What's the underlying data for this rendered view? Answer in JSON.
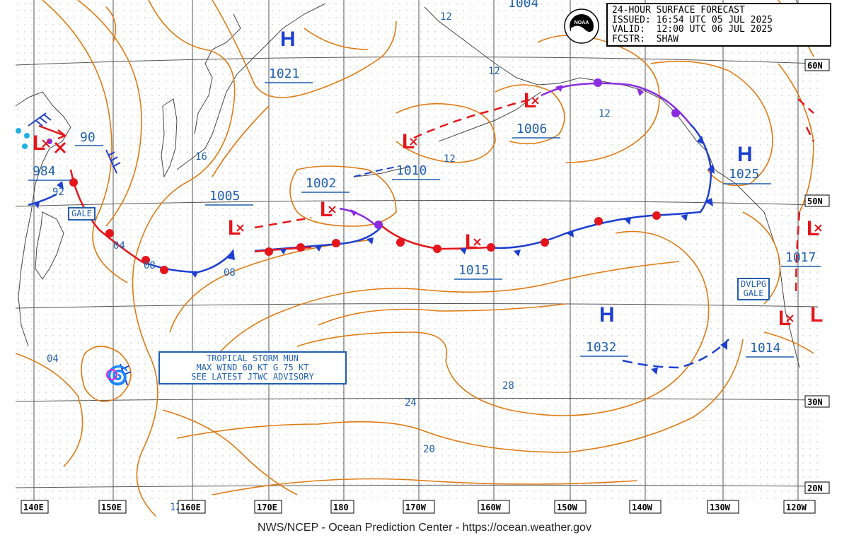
{
  "title": {
    "line1": "24-HOUR SURFACE FORECAST",
    "line2": "ISSUED: 16:54 UTC 05 JUL 2025",
    "line3": "VALID:  12:00 UTC 06 JUL 2025",
    "line4": "FCSTR:  SHAW"
  },
  "footer": "NWS/NCEP - Ocean Prediction Center - https://ocean.weather.gov",
  "logo_text": "NOAA",
  "lon_labels": [
    "140E",
    "150E",
    "160E",
    "170E",
    "180",
    "170W",
    "160W",
    "150W",
    "140W",
    "130W",
    "120W"
  ],
  "lat_labels": [
    "60N",
    "50N",
    "30N",
    "20N"
  ],
  "highs": [
    {
      "letter": "H",
      "value": "1021"
    },
    {
      "letter": "H",
      "value": "1025"
    },
    {
      "letter": "H",
      "value": "1032"
    }
  ],
  "lows": [
    {
      "letter": "L",
      "value": "984"
    },
    {
      "letter": "L",
      "value": "1005"
    },
    {
      "letter": "L",
      "value": "1002"
    },
    {
      "letter": "L",
      "value": "1010"
    },
    {
      "letter": "L",
      "value": "1006"
    },
    {
      "letter": "L",
      "value": "1015"
    },
    {
      "letter": "L",
      "value": "1017"
    },
    {
      "letter": "L",
      "value": "1014"
    },
    {
      "letter": "L",
      "value": "1004"
    }
  ],
  "low_90": "90",
  "tags": {
    "gale": "GALE",
    "dvlpg1": "DVLPG",
    "dvlpg2": "GALE"
  },
  "advisory": {
    "line1": "TROPICAL STORM MUN",
    "line2": "MAX WIND 60 KT G 75 KT",
    "line3": "SEE LATEST JTWC ADVISORY"
  },
  "isobar_labels": [
    "12",
    "12",
    "12",
    "12",
    "16",
    "92",
    "04",
    "08",
    "08",
    "04",
    "24",
    "28",
    "20",
    "12",
    "12"
  ],
  "colors": {
    "isobar": "#e07a12",
    "cold": "#1c3fd1",
    "warm": "#e4161b",
    "occluded": "#8a2be2",
    "text_blue": "#1f5fb0",
    "grid": "#444444",
    "coast": "#555555"
  }
}
